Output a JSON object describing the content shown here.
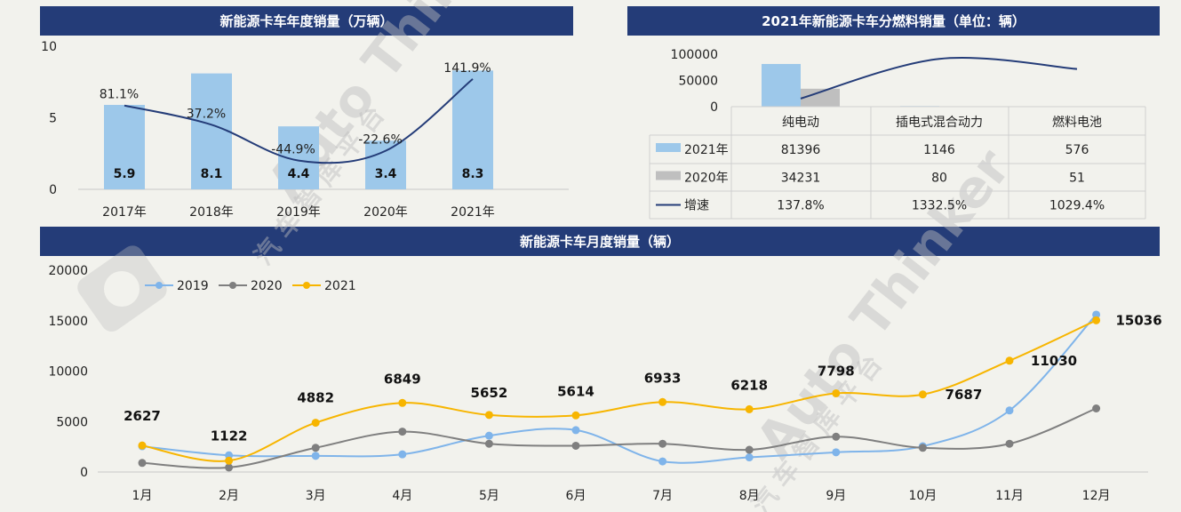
{
  "chart_data": [
    {
      "type": "bar",
      "title": "新能源卡车年度销量（万辆）",
      "categories": [
        "2017年",
        "2018年",
        "2019年",
        "2020年",
        "2021年"
      ],
      "values": [
        5.9,
        8.1,
        4.4,
        3.4,
        8.3
      ],
      "value_labels": [
        "5.9",
        "8.1",
        "4.4",
        "3.4",
        "8.3"
      ],
      "growth_values": [
        81.1,
        37.2,
        -44.9,
        -22.6,
        141.9
      ],
      "growth_labels": [
        "81.1%",
        "37.2%",
        "-44.9%",
        "-22.6%",
        "141.9%"
      ],
      "yticks": [
        "0",
        "5",
        "10"
      ],
      "ylim": [
        0,
        10
      ],
      "colors": {
        "bar": "#9dc8ea",
        "line": "#243c78"
      }
    },
    {
      "type": "bar",
      "title": "2021年新能源卡车分燃料销量（单位：辆）",
      "categories": [
        "纯电动",
        "插电式混合动力",
        "燃料电池"
      ],
      "series": [
        {
          "name": "2021年",
          "values": [
            81396,
            1146,
            576
          ],
          "labels": [
            "81396",
            "1146",
            "576"
          ]
        },
        {
          "name": "2020年",
          "values": [
            34231,
            80,
            51
          ],
          "labels": [
            "34231",
            "80",
            "51"
          ]
        },
        {
          "name": "增速",
          "values": [
            137.8,
            1332.5,
            1029.4
          ],
          "labels": [
            "137.8%",
            "1332.5%",
            "1029.4%"
          ]
        }
      ],
      "yticks": [
        "0",
        "50000",
        "100000"
      ],
      "ylim": [
        0,
        100000
      ],
      "colors": {
        "2021年": "#9dc8ea",
        "2020年": "#bfbfbf",
        "增速": "#243c78"
      }
    },
    {
      "type": "line",
      "title": "新能源卡车月度销量（辆）",
      "categories": [
        "1月",
        "2月",
        "3月",
        "4月",
        "5月",
        "6月",
        "7月",
        "8月",
        "9月",
        "10月",
        "11月",
        "12月"
      ],
      "series": [
        {
          "name": "2019",
          "values": [
            2550,
            1650,
            1600,
            1750,
            3600,
            4150,
            1050,
            1450,
            1950,
            2550,
            6100,
            15600
          ]
        },
        {
          "name": "2020",
          "values": [
            900,
            450,
            2400,
            4000,
            2800,
            2600,
            2800,
            2200,
            3500,
            2400,
            2800,
            6300
          ]
        },
        {
          "name": "2021",
          "values": [
            2627,
            1122,
            4882,
            6849,
            5652,
            5614,
            6933,
            6218,
            7798,
            7687,
            11030,
            15036
          ],
          "labels": [
            "2627",
            "1122",
            "4882",
            "6849",
            "5652",
            "5614",
            "6933",
            "6218",
            "7798",
            "7687",
            "11030",
            "15036"
          ]
        }
      ],
      "yticks": [
        "0",
        "5000",
        "10000",
        "15000",
        "20000"
      ],
      "ylim": [
        0,
        20000
      ],
      "legend": "top-left",
      "colors": {
        "2019": "#7fb4ea",
        "2020": "#7f7f7f",
        "2021": "#f7b500"
      }
    }
  ],
  "watermark": {
    "brand": "Auto Thinker",
    "chars": "汽 车 智 库 平 台"
  }
}
